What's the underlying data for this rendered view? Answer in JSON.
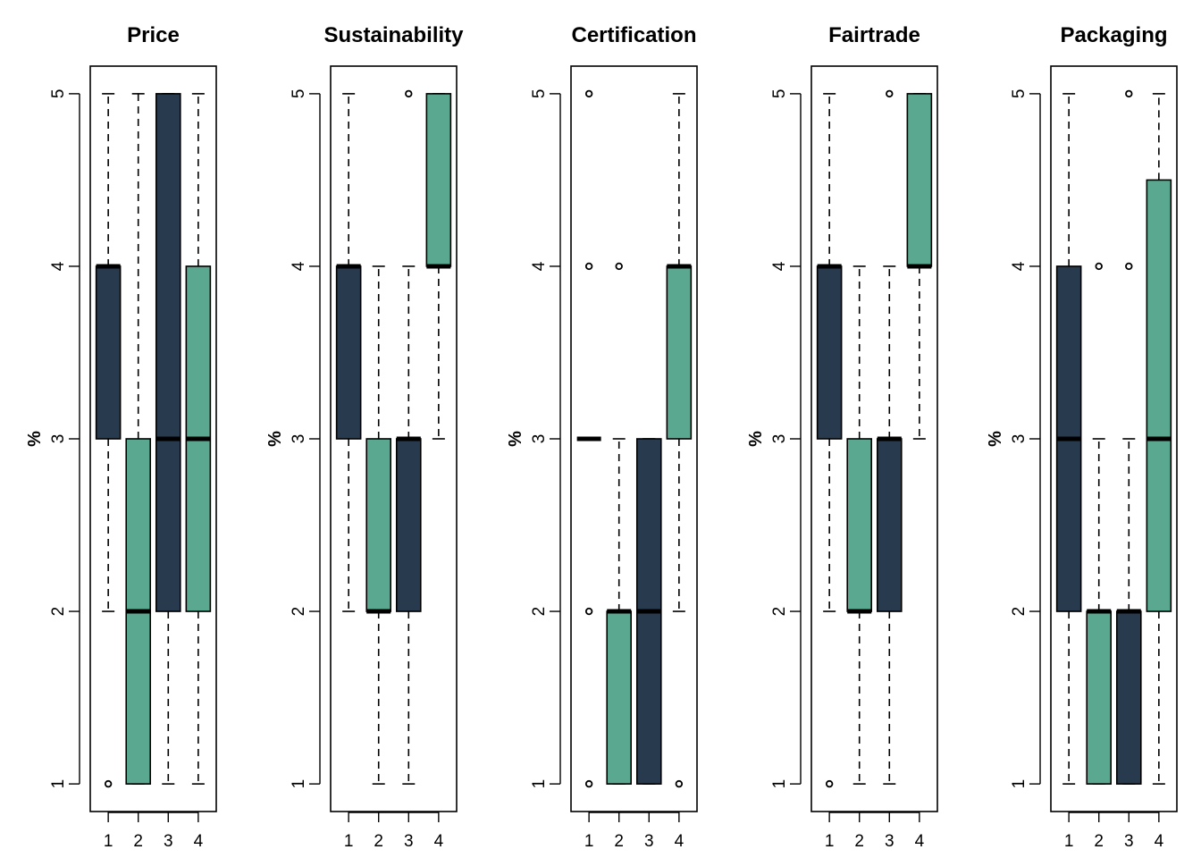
{
  "colors": {
    "dark": "#283a4e",
    "teal": "#5aa88f",
    "ink": "#000000"
  },
  "chart_data": [
    {
      "type": "boxplot",
      "title": "Price",
      "ylabel": "%",
      "categories": [
        "1",
        "2",
        "3",
        "4"
      ],
      "yticks": [
        "1",
        "2",
        "3",
        "4",
        "5"
      ],
      "ylim": [
        0.84,
        5.16
      ],
      "grid": false,
      "boxes": [
        {
          "category": "1",
          "whisker_low": 2,
          "q1": 3,
          "median": 4,
          "q3": 4,
          "whisker_high": 5,
          "outliers": [
            1
          ],
          "color": "dark"
        },
        {
          "category": "2",
          "whisker_low": 1,
          "q1": 1,
          "median": 2,
          "q3": 3,
          "whisker_high": 5,
          "outliers": [],
          "color": "teal"
        },
        {
          "category": "3",
          "whisker_low": 1,
          "q1": 2,
          "median": 3,
          "q3": 5,
          "whisker_high": 5,
          "outliers": [],
          "color": "dark"
        },
        {
          "category": "4",
          "whisker_low": 1,
          "q1": 2,
          "median": 3,
          "q3": 4,
          "whisker_high": 5,
          "outliers": [],
          "color": "teal"
        }
      ]
    },
    {
      "type": "boxplot",
      "title": "Sustainability",
      "ylabel": "%",
      "categories": [
        "1",
        "2",
        "3",
        "4"
      ],
      "yticks": [
        "1",
        "2",
        "3",
        "4",
        "5"
      ],
      "ylim": [
        0.84,
        5.16
      ],
      "grid": false,
      "boxes": [
        {
          "category": "1",
          "whisker_low": 2,
          "q1": 3,
          "median": 4,
          "q3": 4,
          "whisker_high": 5,
          "outliers": [],
          "color": "dark"
        },
        {
          "category": "2",
          "whisker_low": 1,
          "q1": 2,
          "median": 2,
          "q3": 3,
          "whisker_high": 4,
          "outliers": [],
          "color": "teal"
        },
        {
          "category": "3",
          "whisker_low": 1,
          "q1": 2,
          "median": 3,
          "q3": 3,
          "whisker_high": 4,
          "outliers": [
            5
          ],
          "color": "dark"
        },
        {
          "category": "4",
          "whisker_low": 3,
          "q1": 4,
          "median": 4,
          "q3": 5,
          "whisker_high": 5,
          "outliers": [],
          "color": "teal"
        }
      ]
    },
    {
      "type": "boxplot",
      "title": "Certification",
      "ylabel": "%",
      "categories": [
        "1",
        "2",
        "3",
        "4"
      ],
      "yticks": [
        "1",
        "2",
        "3",
        "4",
        "5"
      ],
      "ylim": [
        0.84,
        5.16
      ],
      "grid": false,
      "boxes": [
        {
          "category": "1",
          "whisker_low": 3,
          "q1": 3,
          "median": 3,
          "q3": 3,
          "whisker_high": 3,
          "outliers": [
            1,
            2,
            4,
            5
          ],
          "color": "dark"
        },
        {
          "category": "2",
          "whisker_low": 1,
          "q1": 1,
          "median": 2,
          "q3": 2,
          "whisker_high": 3,
          "outliers": [
            4
          ],
          "color": "teal"
        },
        {
          "category": "3",
          "whisker_low": 1,
          "q1": 1,
          "median": 2,
          "q3": 3,
          "whisker_high": 3,
          "outliers": [],
          "color": "dark"
        },
        {
          "category": "4",
          "whisker_low": 2,
          "q1": 3,
          "median": 4,
          "q3": 4,
          "whisker_high": 5,
          "outliers": [
            1
          ],
          "color": "teal"
        }
      ]
    },
    {
      "type": "boxplot",
      "title": "Fairtrade",
      "ylabel": "%",
      "categories": [
        "1",
        "2",
        "3",
        "4"
      ],
      "yticks": [
        "1",
        "2",
        "3",
        "4",
        "5"
      ],
      "ylim": [
        0.84,
        5.16
      ],
      "grid": false,
      "boxes": [
        {
          "category": "1",
          "whisker_low": 2,
          "q1": 3,
          "median": 4,
          "q3": 4,
          "whisker_high": 5,
          "outliers": [
            1
          ],
          "color": "dark"
        },
        {
          "category": "2",
          "whisker_low": 1,
          "q1": 2,
          "median": 2,
          "q3": 3,
          "whisker_high": 4,
          "outliers": [],
          "color": "teal"
        },
        {
          "category": "3",
          "whisker_low": 1,
          "q1": 2,
          "median": 3,
          "q3": 3,
          "whisker_high": 4,
          "outliers": [
            5
          ],
          "color": "dark"
        },
        {
          "category": "4",
          "whisker_low": 3,
          "q1": 4,
          "median": 4,
          "q3": 5,
          "whisker_high": 5,
          "outliers": [],
          "color": "teal"
        }
      ]
    },
    {
      "type": "boxplot",
      "title": "Packaging",
      "ylabel": "%",
      "categories": [
        "1",
        "2",
        "3",
        "4"
      ],
      "yticks": [
        "1",
        "2",
        "3",
        "4",
        "5"
      ],
      "ylim": [
        0.84,
        5.16
      ],
      "grid": false,
      "boxes": [
        {
          "category": "1",
          "whisker_low": 1,
          "q1": 2,
          "median": 3,
          "q3": 4,
          "whisker_high": 5,
          "outliers": [],
          "color": "dark"
        },
        {
          "category": "2",
          "whisker_low": 1,
          "q1": 1,
          "median": 2,
          "q3": 2,
          "whisker_high": 3,
          "outliers": [
            4
          ],
          "color": "teal"
        },
        {
          "category": "3",
          "whisker_low": 1,
          "q1": 1,
          "median": 2,
          "q3": 2,
          "whisker_high": 3,
          "outliers": [
            4,
            5
          ],
          "color": "dark"
        },
        {
          "category": "4",
          "whisker_low": 1,
          "q1": 2,
          "median": 3,
          "q3": 4.5,
          "whisker_high": 5,
          "outliers": [],
          "color": "teal"
        }
      ]
    }
  ]
}
